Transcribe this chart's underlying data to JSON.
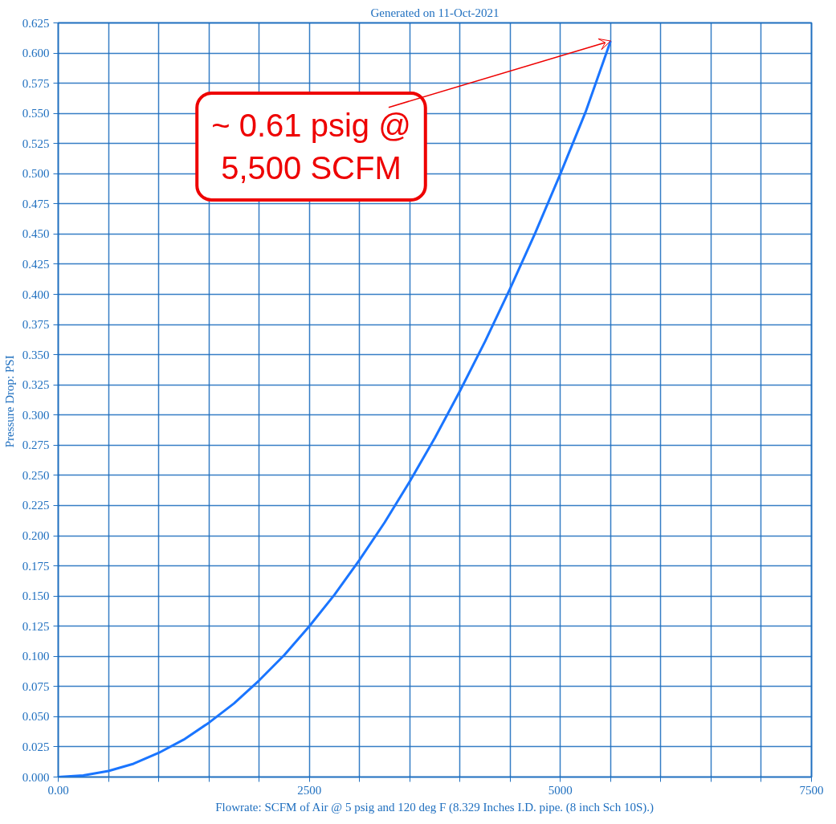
{
  "chart_data": {
    "type": "line",
    "title": "Generated on 11-Oct-2021",
    "xlabel": "Flowrate: SCFM of Air @ 5 psig and 120 deg F (8.329 Inches I.D. pipe. (8 inch Sch 10S).)",
    "ylabel": "Pressure Drop:  PSI",
    "x": [
      0,
      250,
      500,
      750,
      1000,
      1250,
      1500,
      1750,
      2000,
      2250,
      2500,
      2750,
      3000,
      3250,
      3500,
      3750,
      4000,
      4250,
      4500,
      4750,
      5000,
      5250,
      5500
    ],
    "series": [
      {
        "color": "#1a75ff",
        "values": [
          0,
          0.0013,
          0.005,
          0.011,
          0.02,
          0.031,
          0.045,
          0.061,
          0.08,
          0.101,
          0.125,
          0.151,
          0.18,
          0.211,
          0.245,
          0.281,
          0.32,
          0.361,
          0.405,
          0.451,
          0.5,
          0.551,
          0.61
        ]
      }
    ],
    "xlim": [
      0,
      7500
    ],
    "ylim": [
      0,
      0.625
    ],
    "xticks": [
      {
        "value": 0,
        "label": "0.00"
      },
      {
        "value": 500,
        "label": null
      },
      {
        "value": 1000,
        "label": null
      },
      {
        "value": 1500,
        "label": null
      },
      {
        "value": 2000,
        "label": null
      },
      2500,
      {
        "value": 3000,
        "label": null
      },
      {
        "value": 3500,
        "label": null
      },
      {
        "value": 4000,
        "label": null
      },
      {
        "value": 4500,
        "label": null
      },
      5000,
      {
        "value": 5500,
        "label": null
      },
      {
        "value": 6000,
        "label": null
      },
      {
        "value": 6500,
        "label": null
      },
      {
        "value": 7000,
        "label": null
      },
      7500
    ],
    "yticks": [
      {
        "value": 0,
        "label": "0.000"
      },
      0.025,
      {
        "value": 0.05,
        "label": "0.050"
      },
      0.075,
      {
        "value": 0.1,
        "label": "0.100"
      },
      0.125,
      {
        "value": 0.15,
        "label": "0.150"
      },
      0.175,
      {
        "value": 0.2,
        "label": "0.200"
      },
      0.225,
      {
        "value": 0.25,
        "label": "0.250"
      },
      0.275,
      {
        "value": 0.3,
        "label": "0.300"
      },
      0.325,
      {
        "value": 0.35,
        "label": "0.350"
      },
      0.375,
      {
        "value": 0.4,
        "label": "0.400"
      },
      0.425,
      {
        "value": 0.45,
        "label": "0.450"
      },
      0.475,
      {
        "value": 0.5,
        "label": "0.500"
      },
      0.525,
      {
        "value": 0.55,
        "label": "0.550"
      },
      0.575,
      {
        "value": 0.6,
        "label": "0.600"
      },
      0.625
    ],
    "grid": true,
    "marker": "none",
    "line_style": "solid",
    "annotations": [
      {
        "text": "~ 0.61 psig @\n5,500 SCFM",
        "x": 5500,
        "y": 0.61
      }
    ]
  }
}
